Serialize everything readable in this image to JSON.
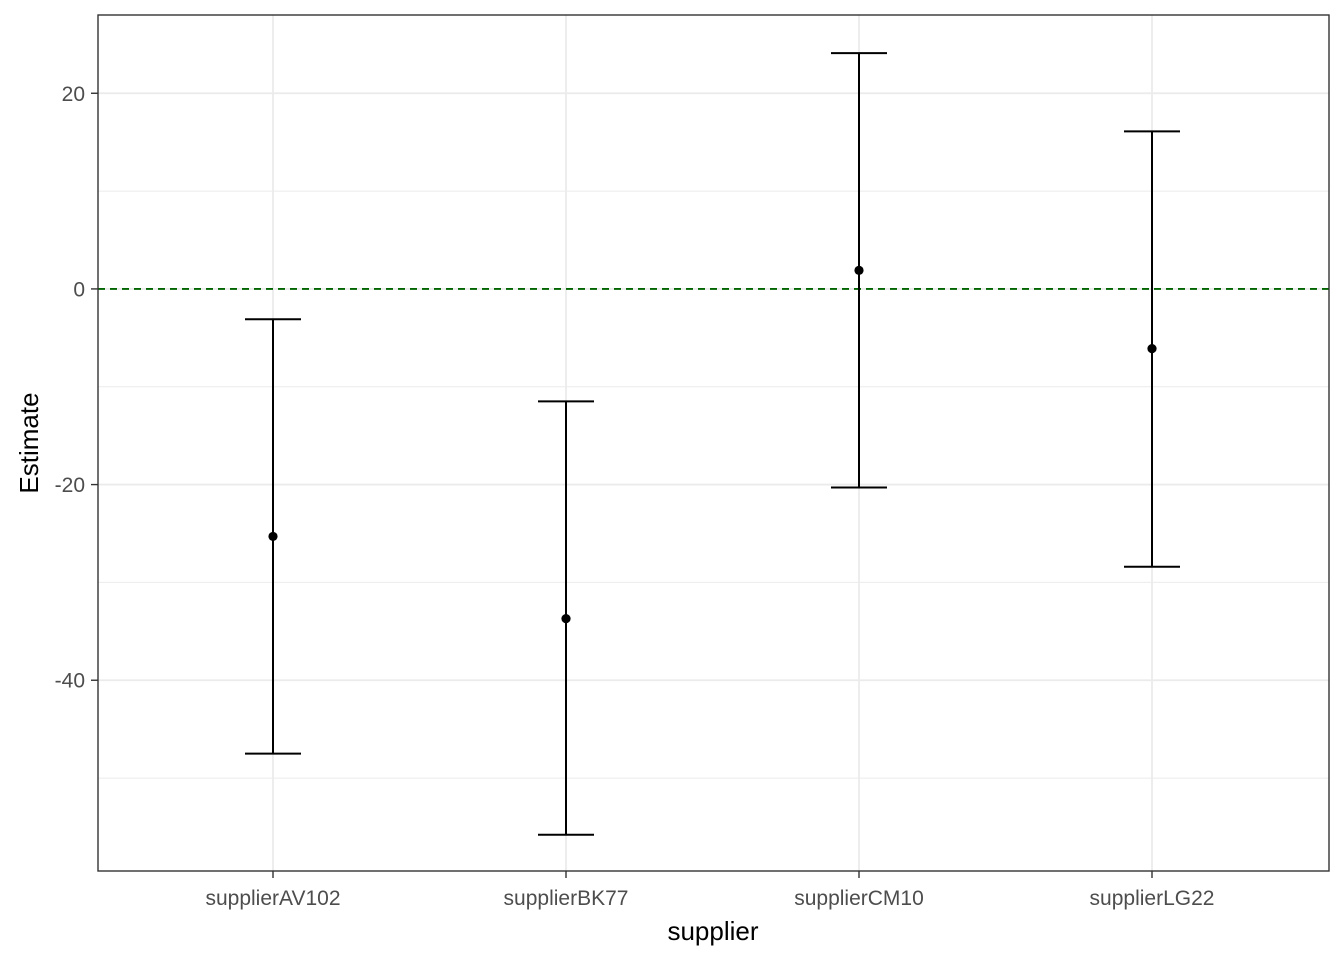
{
  "chart_data": {
    "type": "errorbar",
    "title": "",
    "xlabel": "supplier",
    "ylabel": "Estimate",
    "categories": [
      "supplierAV102",
      "supplierBK77",
      "supplierCM10",
      "supplierLG22"
    ],
    "series": [
      {
        "estimate": [
          -25.3,
          -33.7,
          1.9,
          -6.1
        ],
        "lower": [
          -47.5,
          -55.8,
          -20.3,
          -28.4
        ],
        "upper": [
          -3.1,
          -11.5,
          24.1,
          16.1
        ]
      }
    ],
    "reference_line": {
      "y": 0,
      "color": "#006400",
      "style": "dashed"
    },
    "ylim": [
      -59.5,
      28.0
    ],
    "y_ticks": [
      20,
      0,
      -20,
      -40
    ],
    "y_tick_labels": [
      "20",
      "0",
      "-20",
      "-40"
    ],
    "grid": true,
    "legend": "none",
    "colors": {
      "marks": "#000000",
      "grid": "#ebebeb",
      "panel_border": "#333333",
      "tick_label": "#4d4d4d"
    }
  }
}
